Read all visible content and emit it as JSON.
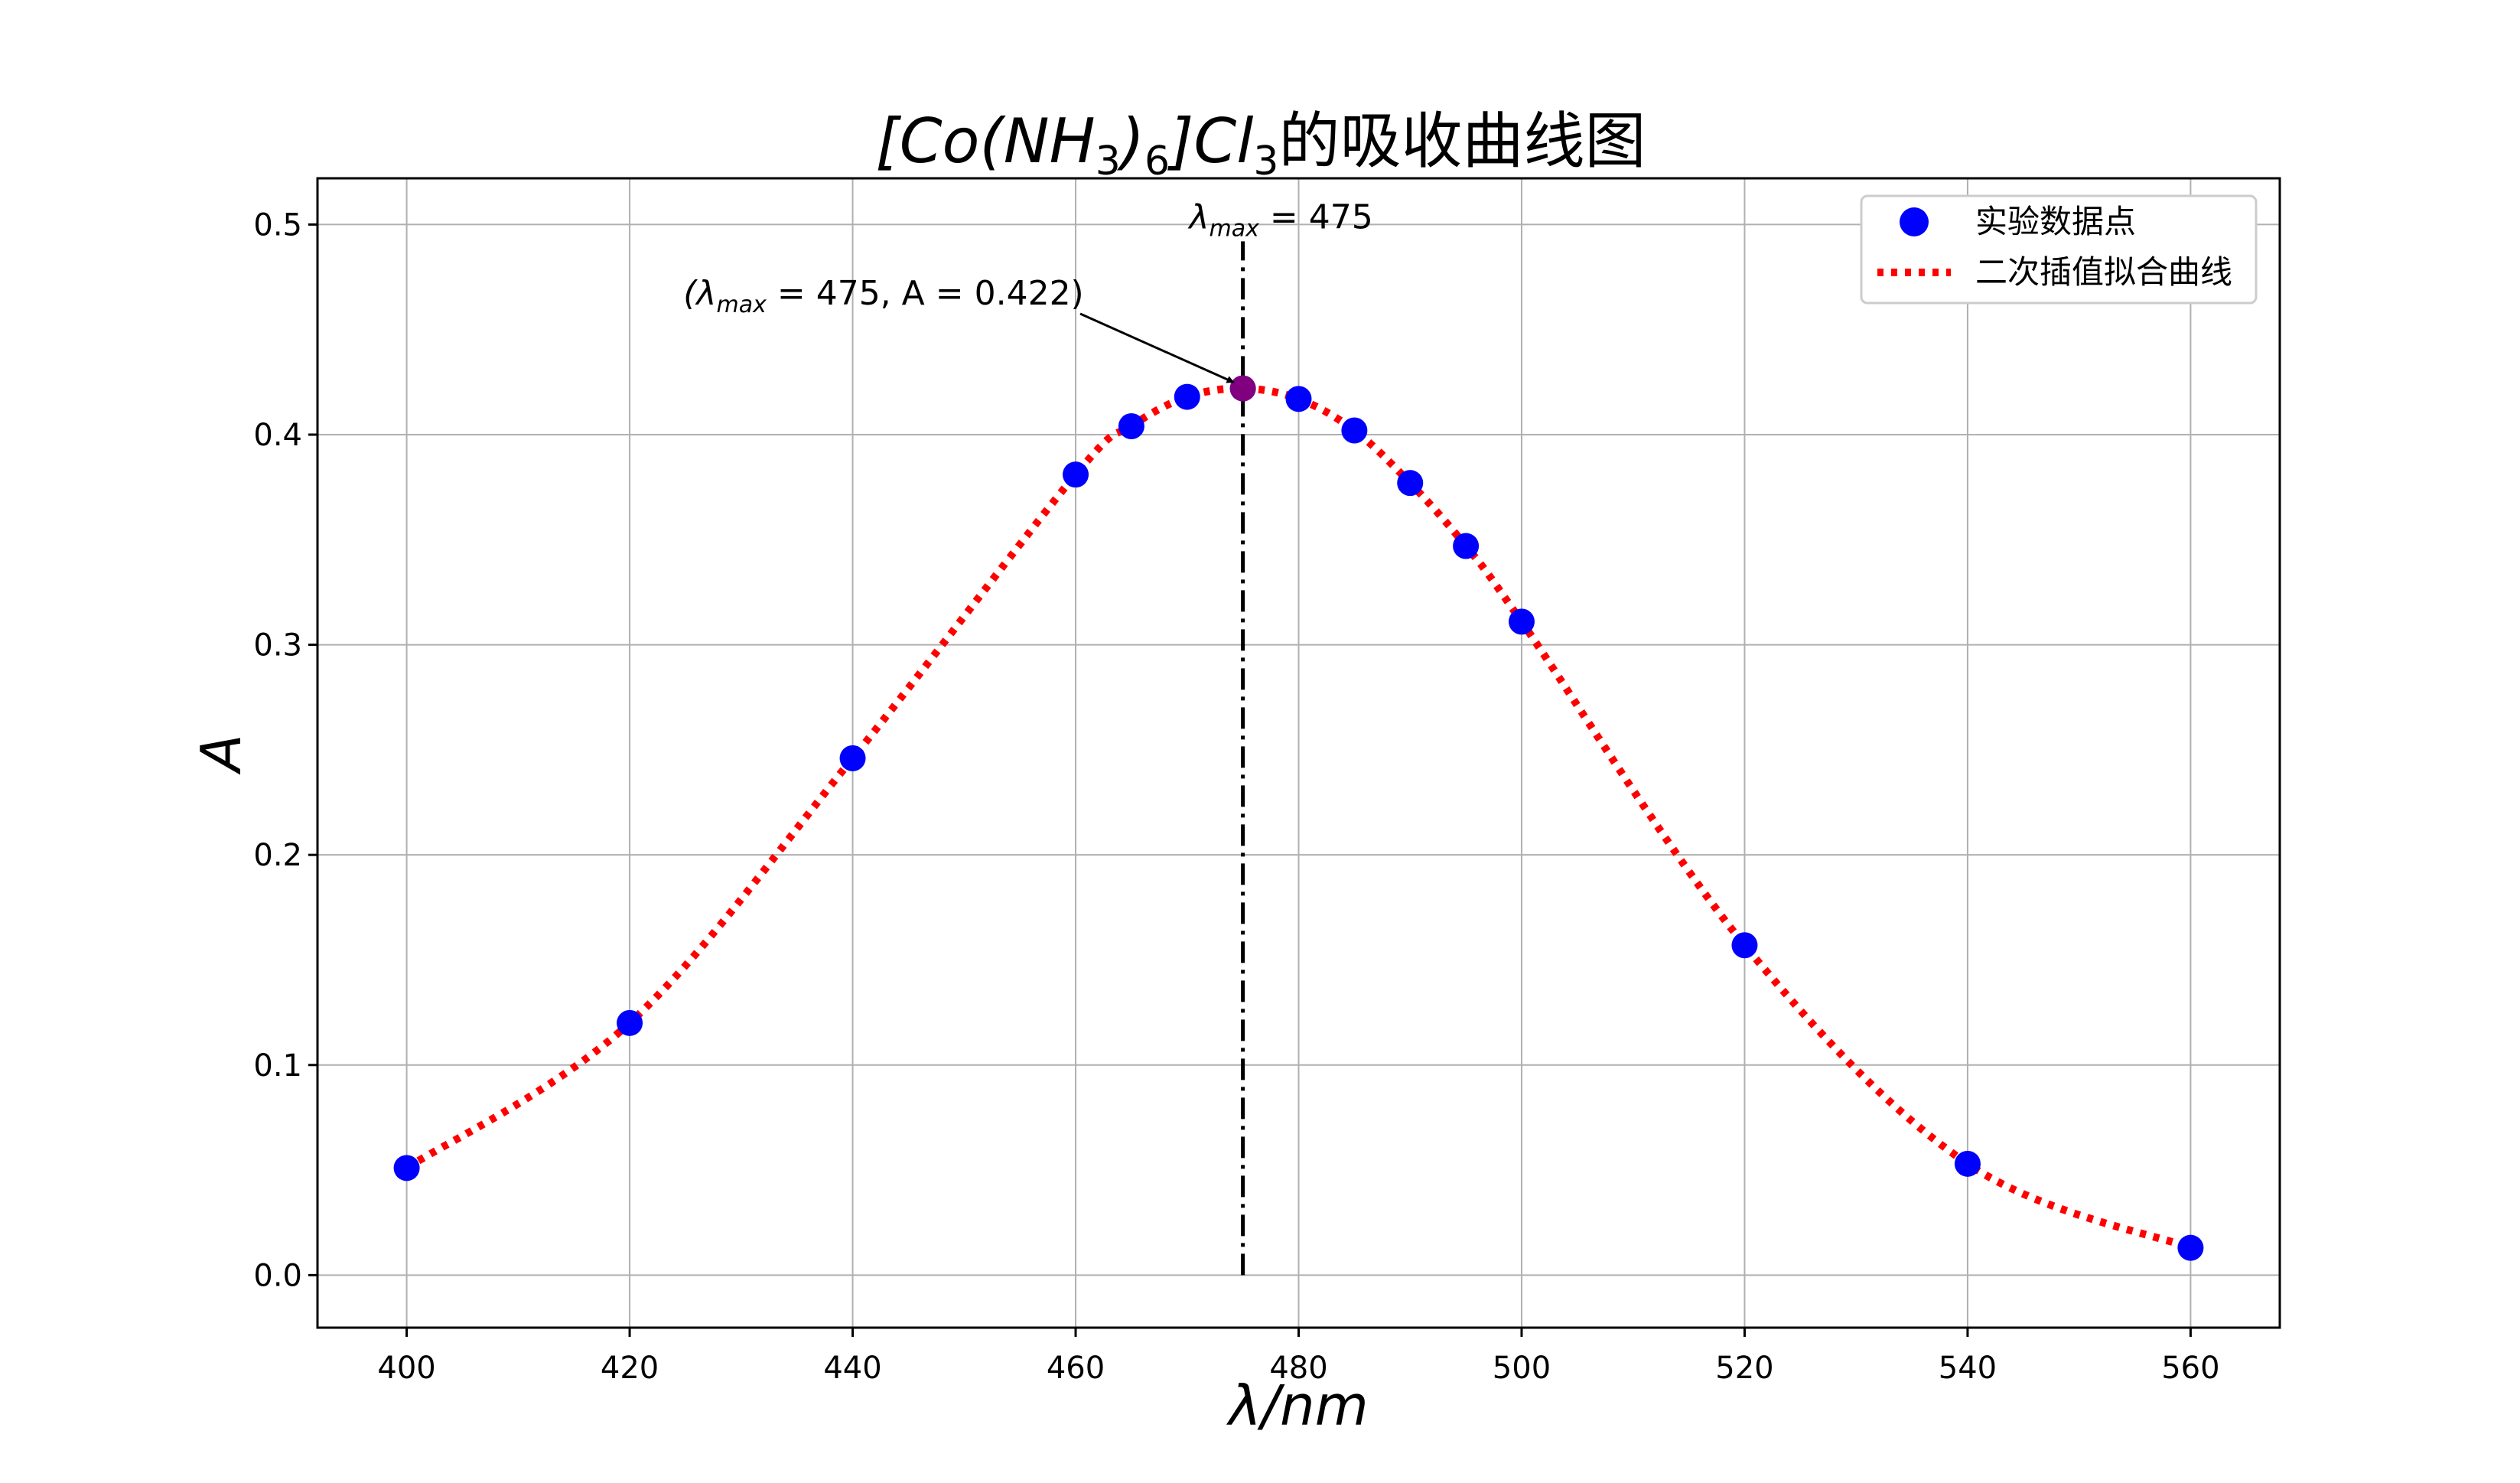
{
  "chart_data": {
    "type": "scatter",
    "title_main": "[Co(NH",
    "title_sub1": "3",
    "title_mid": ")",
    "title_sub2": "6",
    "title_after": "]Cl",
    "title_sub3": "3",
    "title_suffix": "的吸收曲线图",
    "xlabel": "λ/nm",
    "ylabel": "A",
    "xlim": [
      392,
      568
    ],
    "ylim": [
      -0.025,
      0.522
    ],
    "xticks": [
      400,
      420,
      440,
      460,
      480,
      500,
      520,
      540,
      560
    ],
    "yticks": [
      0.0,
      0.1,
      0.2,
      0.3,
      0.4,
      0.5
    ],
    "ytick_labels": [
      "0.0",
      "0.1",
      "0.2",
      "0.3",
      "0.4",
      "0.5"
    ],
    "grid": true,
    "legend_position": "top-right",
    "series": [
      {
        "name": "实验数据点",
        "kind": "scatter",
        "color": "#0000ff",
        "x": [
          400,
          420,
          440,
          460,
          465,
          470,
          475,
          480,
          485,
          490,
          495,
          500,
          520,
          540,
          560
        ],
        "y": [
          0.051,
          0.12,
          0.246,
          0.381,
          0.404,
          0.418,
          0.422,
          0.417,
          0.402,
          0.377,
          0.347,
          0.311,
          0.157,
          0.053,
          0.013
        ]
      },
      {
        "name": "二次插值拟合曲线",
        "kind": "line",
        "style": "dotted",
        "color": "#ff0000"
      }
    ],
    "vline": {
      "x": 475,
      "ymin": 0.0,
      "ymax": 0.5,
      "color": "#000000",
      "style": "dashdot"
    },
    "vline_label": {
      "lambda": "λ",
      "sub": "max",
      "value": " = 475"
    },
    "annotation": {
      "point_x": 475,
      "point_y": 0.422,
      "highlight_color": "#800080",
      "text_open": "(λ",
      "text_sub": "max",
      "text_rest": " = 475, A = 0.422)"
    }
  }
}
